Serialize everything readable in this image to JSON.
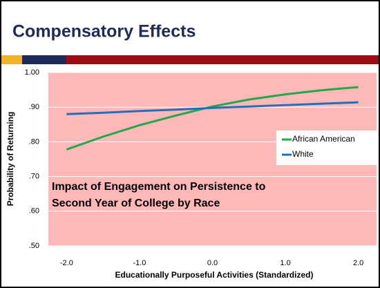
{
  "slide_title": "Compensatory Effects",
  "chart_data": {
    "type": "line",
    "xlabel": "Educationally Purposeful Activities (Standardized)",
    "ylabel": "Probability of Returning",
    "annotation": [
      "Impact of Engagement on Persistence to",
      "Second Year of College by Race"
    ],
    "x": [
      -2,
      -1.5,
      -1,
      -0.5,
      0,
      0.5,
      1,
      1.5,
      2
    ],
    "series": [
      {
        "name": "African American",
        "color": "#1fa84c",
        "values": [
          0.778,
          0.815,
          0.848,
          0.876,
          0.902,
          0.922,
          0.937,
          0.949,
          0.958
        ]
      },
      {
        "name": "White",
        "color": "#1f6fbf",
        "values": [
          0.88,
          0.884,
          0.889,
          0.893,
          0.898,
          0.902,
          0.906,
          0.91,
          0.914
        ]
      }
    ],
    "xlim": [
      -2.25,
      2.25
    ],
    "xticks": [
      {
        "value": -2,
        "label": "-2.0"
      },
      {
        "value": -1,
        "label": "-1.0"
      },
      {
        "value": 0,
        "label": "0.0"
      },
      {
        "value": 1,
        "label": "1.0"
      },
      {
        "value": 2,
        "label": "2.0"
      }
    ],
    "ylim": [
      0.5,
      1
    ],
    "yticks": [
      {
        "value": 0.5,
        "label": ".50"
      },
      {
        "value": 0.6,
        "label": ".60"
      },
      {
        "value": 0.7,
        "label": ".70"
      },
      {
        "value": 0.8,
        "label": ".80"
      },
      {
        "value": 0.9,
        "label": ".90"
      },
      {
        "value": 1,
        "label": "1.00"
      }
    ],
    "grid": true,
    "legend": "right",
    "background": "#ffb8b8"
  }
}
